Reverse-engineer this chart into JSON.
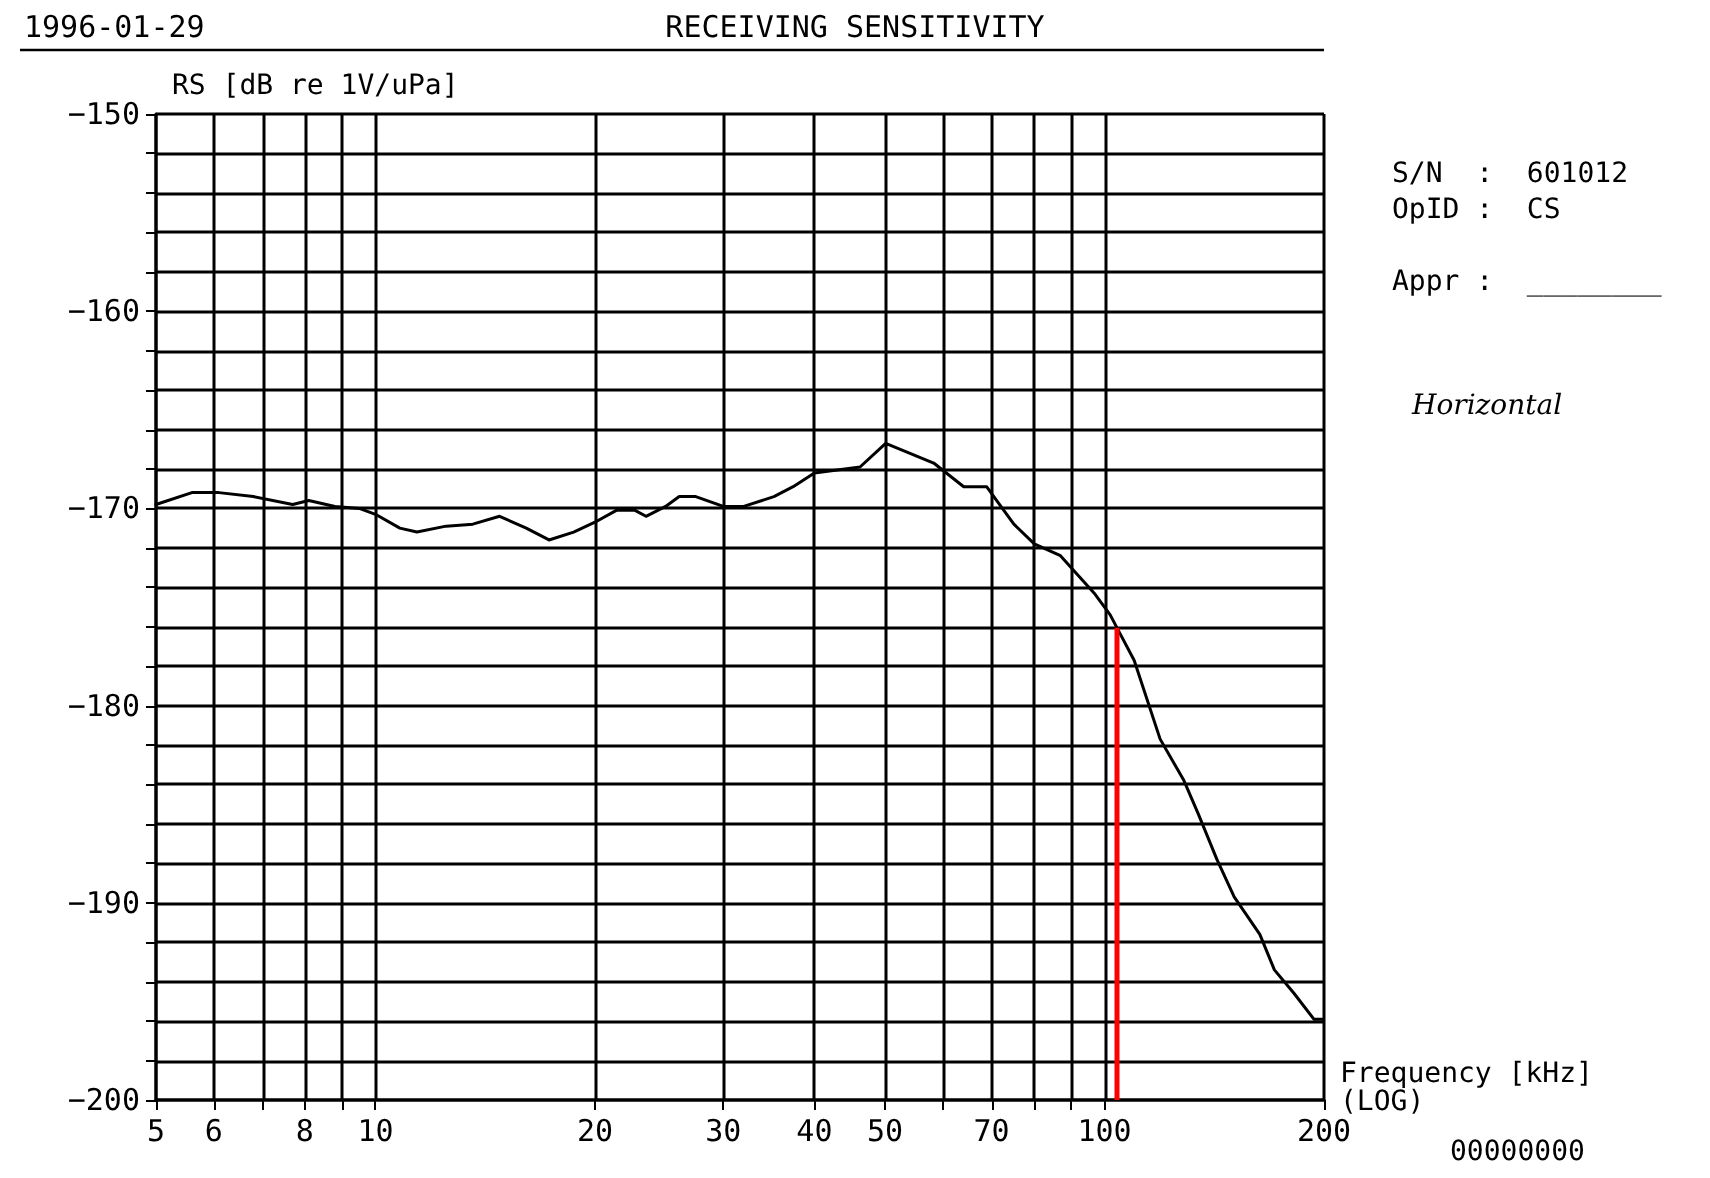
{
  "chart_data": {
    "type": "line",
    "title": "RECEIVING SENSITIVITY",
    "xlabel": "Frequency [kHz]\n(LOG)",
    "ylabel": "RS [dB re 1V/uPa]",
    "annotations": [
      "1996-01-29",
      "S/N  :  601012",
      "OpID :  CS",
      "Appr :  ________",
      "Horizontal",
      "00000000"
    ],
    "log": "x",
    "grid": true,
    "marker": "none",
    "line_style": "solid",
    "xlim": [
      5,
      200
    ],
    "xticks": [
      5,
      6,
      {
        "value": 7,
        "label": null
      },
      8,
      {
        "value": 9,
        "label": null
      },
      10,
      20,
      30,
      40,
      50,
      {
        "value": 60,
        "label": null
      },
      70,
      {
        "value": 80,
        "label": null
      },
      {
        "value": 90,
        "label": null
      },
      100,
      200
    ],
    "ylim": [
      -200,
      -150
    ],
    "yticks": [
      -200,
      {
        "value": -198,
        "label": null
      },
      {
        "value": -196,
        "label": null
      },
      {
        "value": -194,
        "label": null
      },
      {
        "value": -192,
        "label": null
      },
      -190,
      {
        "value": -188,
        "label": null
      },
      {
        "value": -186,
        "label": null
      },
      {
        "value": -184,
        "label": null
      },
      {
        "value": -182,
        "label": null
      },
      -180,
      {
        "value": -178,
        "label": null
      },
      {
        "value": -176,
        "label": null
      },
      {
        "value": -174,
        "label": null
      },
      {
        "value": -172,
        "label": null
      },
      -170,
      {
        "value": -168,
        "label": null
      },
      {
        "value": -166,
        "label": null
      },
      {
        "value": -164,
        "label": null
      },
      {
        "value": -162,
        "label": null
      },
      -160,
      {
        "value": -158,
        "label": null
      },
      {
        "value": -156,
        "label": null
      },
      {
        "value": -154,
        "label": null
      },
      {
        "value": -152,
        "label": null
      },
      -150
    ],
    "ref_lines": [
      {
        "axis": "x",
        "value": 104,
        "color": "#ff0000"
      }
    ],
    "series": [
      {
        "color": "#000000",
        "x": [
          5,
          5.6,
          6.1,
          6.8,
          7.7,
          8.1,
          8.8,
          9.5,
          10,
          10.8,
          11.4,
          12.5,
          13.6,
          14.8,
          16.1,
          17.3,
          18.7,
          20,
          21.4,
          22.7,
          23.5,
          25,
          26.1,
          27.5,
          30,
          32,
          35.2,
          37.4,
          40,
          46.2,
          50.1,
          58.3,
          64.1,
          68.9,
          75.1,
          80.1,
          87,
          96.8,
          101.8,
          104.5,
          109.8,
          119.2,
          128.5,
          134.5,
          142.6,
          150.6,
          163.3,
          171,
          182,
          193.7,
          199
        ],
        "values": [
          -169.8,
          -169.2,
          -169.2,
          -169.4,
          -169.8,
          -169.6,
          -169.9,
          -170.0,
          -170.3,
          -171.0,
          -171.2,
          -170.9,
          -170.8,
          -170.4,
          -171.0,
          -171.6,
          -171.2,
          -170.7,
          -170.1,
          -170.1,
          -170.4,
          -169.9,
          -169.4,
          -169.4,
          -169.9,
          -169.9,
          -169.4,
          -168.9,
          -168.2,
          -167.9,
          -166.7,
          -167.7,
          -168.9,
          -168.9,
          -170.8,
          -171.8,
          -172.4,
          -174.3,
          -175.4,
          -176.2,
          -177.7,
          -181.7,
          -183.8,
          -185.5,
          -187.8,
          -189.7,
          -191.6,
          -193.4,
          -194.6,
          -195.9,
          -195.9
        ]
      }
    ]
  }
}
